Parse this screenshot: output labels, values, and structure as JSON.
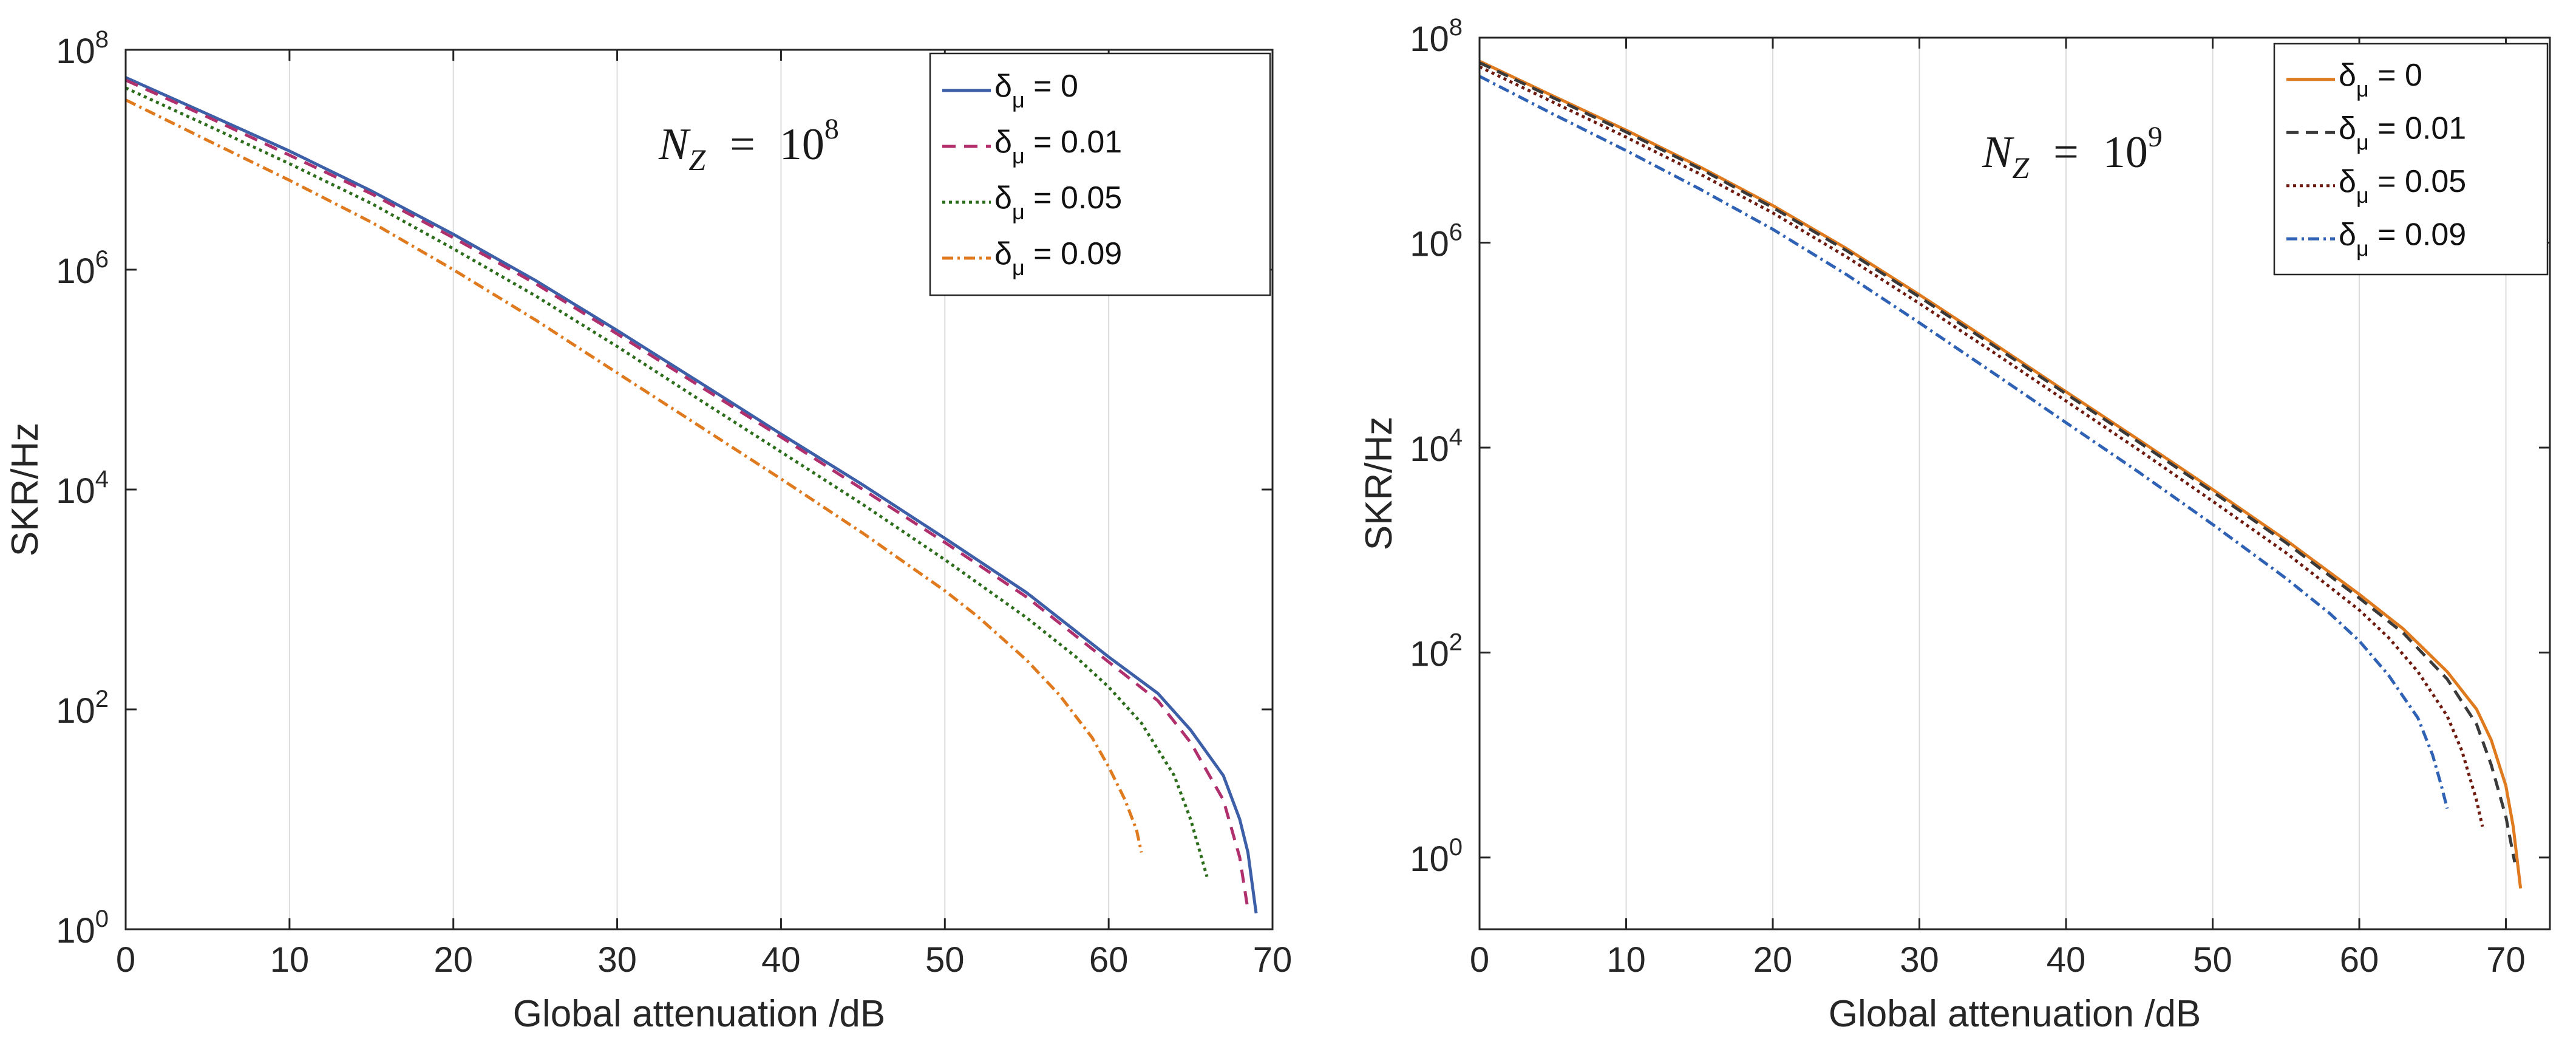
{
  "chart_data": [
    {
      "type": "line",
      "panel": "left",
      "xlabel": "Global attenuation /dB",
      "ylabel": "SKR/Hz",
      "yscale": "log",
      "xlim": [
        0,
        70
      ],
      "ylim_exp": [
        0,
        8
      ],
      "x_ticks": [
        0,
        10,
        20,
        30,
        40,
        50,
        60,
        70
      ],
      "y_ticks_exp": [
        0,
        2,
        4,
        6,
        8
      ],
      "grid": "vertical",
      "legend_position": "top-right",
      "annotation": {
        "symbol": "N",
        "subscript": "Z",
        "equals": "=",
        "base": "10",
        "exponent": "8"
      },
      "series": [
        {
          "name": "δμ = 0",
          "label_main": "δ",
          "label_sub": "μ",
          "label_rest": " = 0",
          "color": "#3d5fa8",
          "dash": "",
          "x": [
            0,
            5,
            10,
            15,
            20,
            25,
            30,
            35,
            40,
            45,
            50,
            55,
            60,
            63,
            65,
            67,
            68,
            68.5,
            69
          ],
          "y": [
            56000000.0,
            26000000.0,
            12000000.0,
            5200000.0,
            2100000.0,
            800000.0,
            280000.0,
            95000.0,
            32000.0,
            11000.0,
            3600.0,
            1150.0,
            300.0,
            140.0,
            65.0,
            25.0,
            10.0,
            5.0,
            1.4
          ]
        },
        {
          "name": "δμ = 0.01",
          "label_main": "δ",
          "label_sub": "μ",
          "label_rest": " = 0.01",
          "color": "#b0306e",
          "dash": "22,14",
          "x": [
            0,
            5,
            10,
            15,
            20,
            25,
            30,
            35,
            40,
            45,
            50,
            55,
            60,
            63,
            65,
            67,
            68,
            68.5
          ],
          "y": [
            53000000.0,
            24500000.0,
            11000000.0,
            4900000.0,
            1950000.0,
            750000.0,
            260000.0,
            88000.0,
            30000.0,
            10000.0,
            3300.0,
            1050.0,
            270.0,
            120.0,
            50.0,
            15.0,
            4.5,
            1.5
          ]
        },
        {
          "name": "δμ = 0.05",
          "label_main": "δ",
          "label_sub": "μ",
          "label_rest": " = 0.05",
          "color": "#2d6e1c",
          "dash": "5,6",
          "x": [
            0,
            5,
            10,
            15,
            20,
            25,
            30,
            35,
            40,
            45,
            50,
            55,
            58,
            60,
            62,
            64,
            65,
            66
          ],
          "y": [
            45000000.0,
            20500000.0,
            9200000.0,
            4000000.0,
            1550000.0,
            580000.0,
            200000.0,
            66000.0,
            22000.0,
            7300.0,
            2300.0,
            680.0,
            300.0,
            160.0,
            75.0,
            25.0,
            10.0,
            3.0
          ]
        },
        {
          "name": "δμ = 0.09",
          "label_main": "δ",
          "label_sub": "μ",
          "label_rest": " = 0.09",
          "color": "#e07a1f",
          "dash": "18,7,4,7",
          "x": [
            0,
            5,
            10,
            15,
            20,
            25,
            30,
            35,
            40,
            45,
            50,
            52,
            55,
            57,
            59,
            60,
            61,
            61.7,
            62
          ],
          "y": [
            35000000.0,
            15000000.0,
            6500000.0,
            2700000.0,
            1000000.0,
            350000.0,
            115000.0,
            38000.0,
            12500.0,
            4000.0,
            1200.0,
            700.0,
            280.0,
            135.0,
            55.0,
            30.0,
            15.0,
            8.0,
            5.0
          ]
        }
      ]
    },
    {
      "type": "line",
      "panel": "right",
      "xlabel": "Global attenuation /dB",
      "ylabel": "SKR/Hz",
      "yscale": "log",
      "xlim": [
        0,
        73
      ],
      "ylim_exp": [
        -0.7,
        8
      ],
      "x_ticks": [
        0,
        10,
        20,
        30,
        40,
        50,
        60,
        70
      ],
      "y_ticks_exp": [
        0,
        2,
        4,
        6,
        8
      ],
      "grid": "vertical",
      "legend_position": "top-right",
      "annotation": {
        "symbol": "N",
        "subscript": "Z",
        "equals": "=",
        "base": "10",
        "exponent": "9"
      },
      "series": [
        {
          "name": "δμ = 0",
          "label_main": "δ",
          "label_sub": "μ",
          "label_rest": " = 0",
          "color": "#e07a1f",
          "dash": "",
          "x": [
            0,
            5,
            10,
            15,
            20,
            25,
            30,
            35,
            40,
            45,
            50,
            55,
            60,
            63,
            66,
            68,
            69,
            70,
            70.5,
            71
          ],
          "y": [
            59000000.0,
            27000000.0,
            12500000.0,
            5500000.0,
            2300000.0,
            880000.0,
            310000.0,
            105000.0,
            35000.0,
            11800.0,
            3900.0,
            1250.0,
            370.0,
            170.0,
            65.0,
            28.0,
            14.0,
            5.0,
            2.0,
            0.5
          ]
        },
        {
          "name": "δμ = 0.01",
          "label_main": "δ",
          "label_sub": "μ",
          "label_rest": " = 0.01",
          "color": "#3a3a3a",
          "dash": "20,12",
          "x": [
            0,
            5,
            10,
            15,
            20,
            25,
            30,
            35,
            40,
            45,
            50,
            55,
            60,
            63,
            66,
            68,
            69,
            70,
            70.6
          ],
          "y": [
            57000000.0,
            26000000.0,
            12000000.0,
            5300000.0,
            2200000.0,
            840000.0,
            295000.0,
            100000.0,
            33500.0,
            11200.0,
            3700.0,
            1180.0,
            340.0,
            155.0,
            55.0,
            20.0,
            8.0,
            2.5,
            0.9
          ]
        },
        {
          "name": "δμ = 0.05",
          "label_main": "δ",
          "label_sub": "μ",
          "label_rest": " = 0.05",
          "color": "#6e1a0e",
          "dash": "5,6",
          "x": [
            0,
            5,
            10,
            15,
            20,
            25,
            30,
            35,
            40,
            45,
            50,
            55,
            60,
            62,
            64,
            66,
            67,
            68,
            68.4
          ],
          "y": [
            52000000.0,
            23500000.0,
            10700000.0,
            4700000.0,
            1950000.0,
            730000.0,
            255000.0,
            86000.0,
            28500.0,
            9400.0,
            3000.0,
            940.0,
            260.0,
            140.0,
            65.0,
            24.0,
            11.0,
            3.6,
            2.0
          ]
        },
        {
          "name": "δμ = 0.09",
          "label_main": "δ",
          "label_sub": "μ",
          "label_rest": " = 0.09",
          "color": "#2f62b4",
          "dash": "18,7,4,7",
          "x": [
            0,
            5,
            10,
            15,
            20,
            25,
            30,
            35,
            40,
            45,
            50,
            55,
            58,
            60,
            62,
            64,
            65,
            65.6,
            66
          ],
          "y": [
            42000000.0,
            18000000.0,
            7900000.0,
            3350000.0,
            1350000.0,
            490000.0,
            165000.0,
            54000.0,
            17500.0,
            5700.0,
            1780.0,
            530.0,
            240.0,
            130.0,
            60.0,
            23.0,
            10.0,
            5.0,
            3.0
          ]
        }
      ]
    }
  ]
}
